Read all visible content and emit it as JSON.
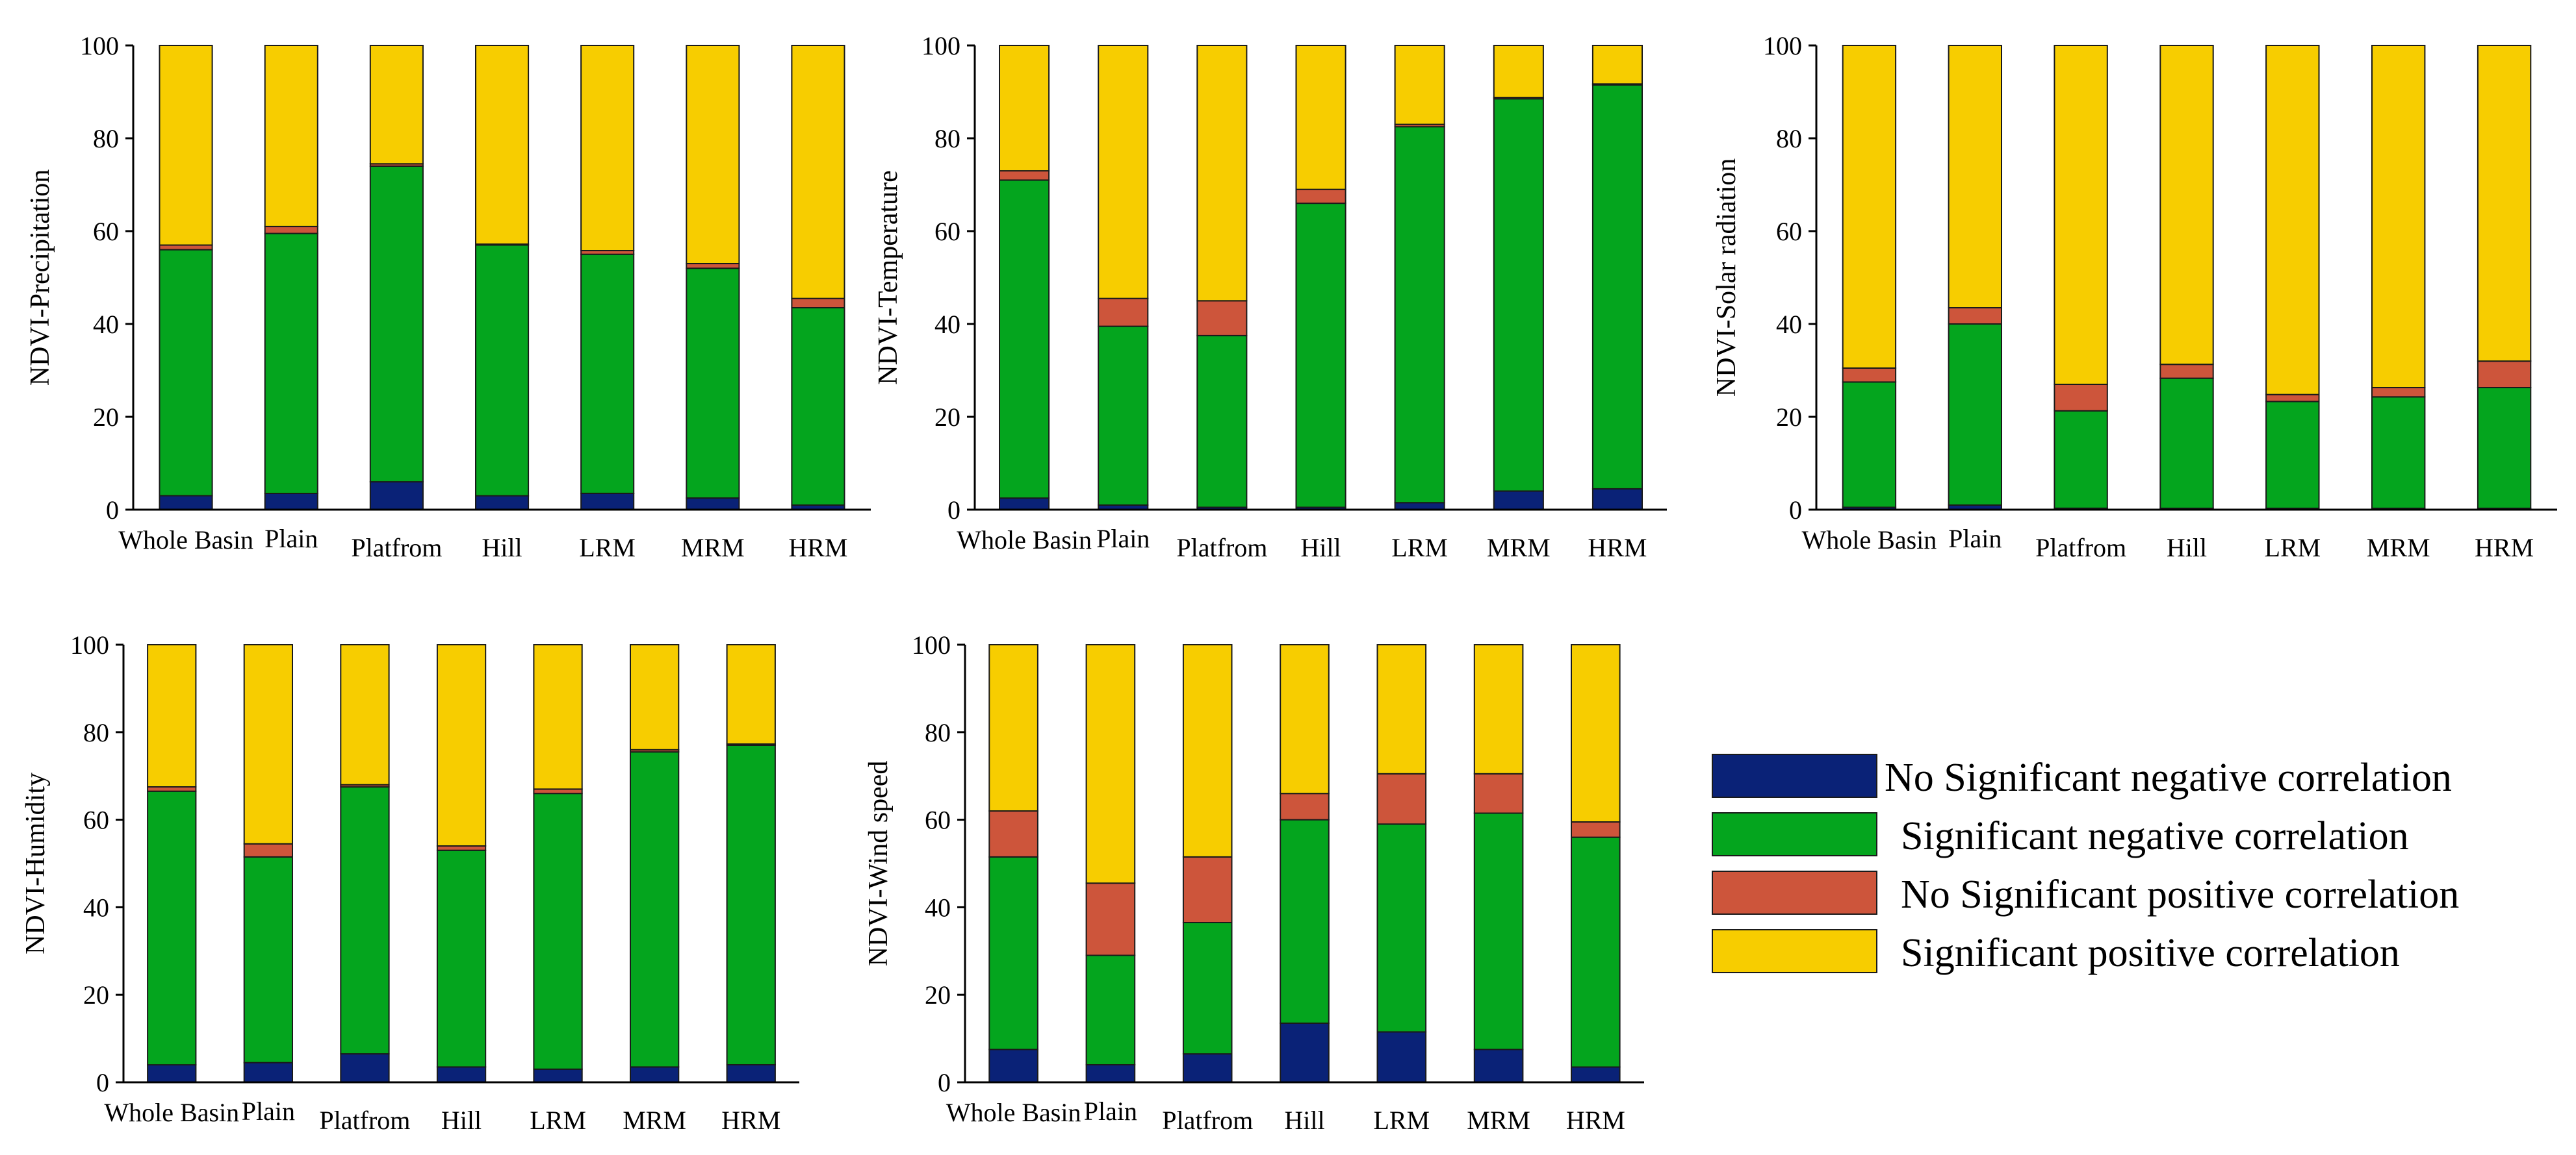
{
  "chart_data": [
    {
      "type": "bar",
      "stacked": true,
      "ylabel": "NDVI-Precipitation",
      "categories": [
        "Whole Basin",
        "Plain",
        "Platfrom",
        "Hill",
        "LRM",
        "MRM",
        "HRM"
      ],
      "ylim": [
        0,
        100
      ],
      "yticks": [
        0,
        20,
        40,
        60,
        80,
        100
      ],
      "series": [
        {
          "name": "No Significant negative correlation",
          "values": [
            3,
            3.5,
            6,
            3,
            3.5,
            2.5,
            1
          ]
        },
        {
          "name": "Significant negative correlation",
          "values": [
            53,
            56,
            68,
            54,
            51.5,
            49.5,
            42.5
          ]
        },
        {
          "name": "No Significant positive correlation",
          "values": [
            1,
            1.5,
            0.5,
            0.2,
            0.8,
            1,
            2
          ]
        },
        {
          "name": "Significant positive correlation",
          "values": [
            43,
            39,
            25.5,
            42.8,
            44.2,
            47,
            54.5
          ]
        }
      ]
    },
    {
      "type": "bar",
      "stacked": true,
      "ylabel": "NDVI-Temperature",
      "categories": [
        "Whole Basin",
        "Plain",
        "Platfrom",
        "Hill",
        "LRM",
        "MRM",
        "HRM"
      ],
      "ylim": [
        0,
        100
      ],
      "yticks": [
        0,
        20,
        40,
        60,
        80,
        100
      ],
      "series": [
        {
          "name": "No Significant negative correlation",
          "values": [
            2.5,
            1,
            0.5,
            0.5,
            1.5,
            4,
            4.5
          ]
        },
        {
          "name": "Significant negative correlation",
          "values": [
            68.5,
            38.5,
            37,
            65.5,
            81,
            84.5,
            87
          ]
        },
        {
          "name": "No Significant positive correlation",
          "values": [
            2,
            6,
            7.5,
            3,
            0.5,
            0.3,
            0.2
          ]
        },
        {
          "name": "Significant positive correlation",
          "values": [
            27,
            54.5,
            55,
            31,
            17,
            11.2,
            8.3
          ]
        }
      ]
    },
    {
      "type": "bar",
      "stacked": true,
      "ylabel": "NDVI-Solar radiation",
      "categories": [
        "Whole Basin",
        "Plain",
        "Platfrom",
        "Hill",
        "LRM",
        "MRM",
        "HRM"
      ],
      "ylim": [
        0,
        100
      ],
      "yticks": [
        0,
        20,
        40,
        60,
        80,
        100
      ],
      "series": [
        {
          "name": "No Significant negative correlation",
          "values": [
            0.5,
            1,
            0.3,
            0.3,
            0.3,
            0.3,
            0.3
          ]
        },
        {
          "name": "Significant negative correlation",
          "values": [
            27,
            39,
            21,
            28,
            23,
            24,
            26
          ]
        },
        {
          "name": "No Significant positive correlation",
          "values": [
            3,
            3.5,
            5.7,
            3,
            1.5,
            2,
            5.7
          ]
        },
        {
          "name": "Significant positive correlation",
          "values": [
            69.5,
            56.5,
            73,
            68.7,
            75.2,
            73.7,
            68
          ]
        }
      ]
    },
    {
      "type": "bar",
      "stacked": true,
      "ylabel": "NDVI-Humidity",
      "categories": [
        "Whole Basin",
        "Plain",
        "Platfrom",
        "Hill",
        "LRM",
        "MRM",
        "HRM"
      ],
      "ylim": [
        0,
        100
      ],
      "yticks": [
        0,
        20,
        40,
        60,
        80,
        100
      ],
      "series": [
        {
          "name": "No Significant negative correlation",
          "values": [
            4,
            4.5,
            6.5,
            3.5,
            3,
            3.5,
            4
          ]
        },
        {
          "name": "Significant negative correlation",
          "values": [
            62.5,
            47,
            61,
            49.5,
            63,
            72,
            73
          ]
        },
        {
          "name": "No Significant positive correlation",
          "values": [
            1,
            3,
            0.5,
            1,
            1,
            0.5,
            0.3
          ]
        },
        {
          "name": "Significant positive correlation",
          "values": [
            32.5,
            45.5,
            32,
            46,
            33,
            24,
            22.7
          ]
        }
      ]
    },
    {
      "type": "bar",
      "stacked": true,
      "ylabel": "NDVI-Wind speed",
      "categories": [
        "Whole Basin",
        "Plain",
        "Platfrom",
        "Hill",
        "LRM",
        "MRM",
        "HRM"
      ],
      "ylim": [
        0,
        100
      ],
      "yticks": [
        0,
        20,
        40,
        60,
        80,
        100
      ],
      "series": [
        {
          "name": "No Significant negative correlation",
          "values": [
            7.5,
            4,
            6.5,
            13.5,
            11.5,
            7.5,
            3.5
          ]
        },
        {
          "name": "Significant negative correlation",
          "values": [
            44,
            25,
            30,
            46.5,
            47.5,
            54,
            52.5
          ]
        },
        {
          "name": "No Significant positive correlation",
          "values": [
            10.5,
            16.5,
            15,
            6,
            11.5,
            9,
            3.5
          ]
        },
        {
          "name": "Significant positive correlation",
          "values": [
            38,
            54.5,
            48.5,
            34,
            29.5,
            29.5,
            40.5
          ]
        }
      ]
    }
  ],
  "legend": {
    "items": [
      {
        "label": "No Significant negative correlation",
        "color": "#0a2277"
      },
      {
        "label": "Significant negative correlation",
        "color": "#04a51e"
      },
      {
        "label": "No Significant positive correlation",
        "color": "#cd553b"
      },
      {
        "label": "Significant positive correlation",
        "color": "#f7cd00"
      }
    ]
  }
}
